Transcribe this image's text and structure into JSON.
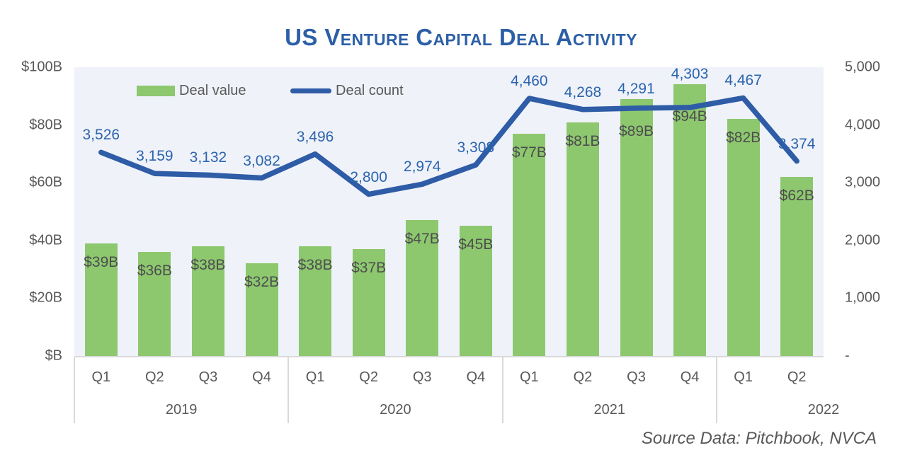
{
  "source_note": "Source Data: Pitchbook, NVCA",
  "chart_data": {
    "type": "combo-bar-line",
    "title": "US Venture Capital Deal Activity",
    "title_color": "#2C5FA6",
    "plot_background": "#EFF2F9",
    "gridlines": false,
    "legend_position": "top-inside",
    "years": [
      {
        "label": "2019",
        "quarters": [
          "Q1",
          "Q2",
          "Q3",
          "Q4"
        ]
      },
      {
        "label": "2020",
        "quarters": [
          "Q1",
          "Q2",
          "Q3",
          "Q4"
        ]
      },
      {
        "label": "2021",
        "quarters": [
          "Q1",
          "Q2",
          "Q3",
          "Q4"
        ]
      },
      {
        "label": "2022",
        "quarters": [
          "Q1",
          "Q2"
        ]
      }
    ],
    "series": [
      {
        "name": "Deal value",
        "chart_type": "bar",
        "axis": "left",
        "unit": "USD billions",
        "color": "#8DC86F",
        "values": [
          39,
          36,
          38,
          32,
          38,
          37,
          47,
          45,
          77,
          81,
          89,
          94,
          82,
          62
        ],
        "data_labels": [
          "$39B",
          "$36B",
          "$38B",
          "$32B",
          "$38B",
          "$37B",
          "$47B",
          "$45B",
          "$77B",
          "$81B",
          "$89B",
          "$94B",
          "$82B",
          "$62B"
        ]
      },
      {
        "name": "Deal count",
        "chart_type": "line",
        "axis": "right",
        "color": "#2E5CA6",
        "values": [
          3526,
          3159,
          3132,
          3082,
          3496,
          2800,
          2974,
          3308,
          4460,
          4268,
          4291,
          4303,
          4467,
          3374
        ],
        "data_labels": [
          "3,526",
          "3,159",
          "3,132",
          "3,082",
          "3,496",
          "2,800",
          "2,974",
          "3,308",
          "4,460",
          "4,268",
          "4,291",
          "4,303",
          "4,467",
          "3,374"
        ]
      }
    ],
    "axes": {
      "left": {
        "min": 0,
        "max": 100,
        "step": 20,
        "tick_labels": [
          "$100B",
          "$80B",
          "$60B",
          "$40B",
          "$20B",
          "$B"
        ]
      },
      "right": {
        "min": 0,
        "max": 5000,
        "step": 1000,
        "tick_labels": [
          "5,000",
          "4,000",
          "3,000",
          "2,000",
          "1,000",
          "-"
        ]
      }
    }
  }
}
